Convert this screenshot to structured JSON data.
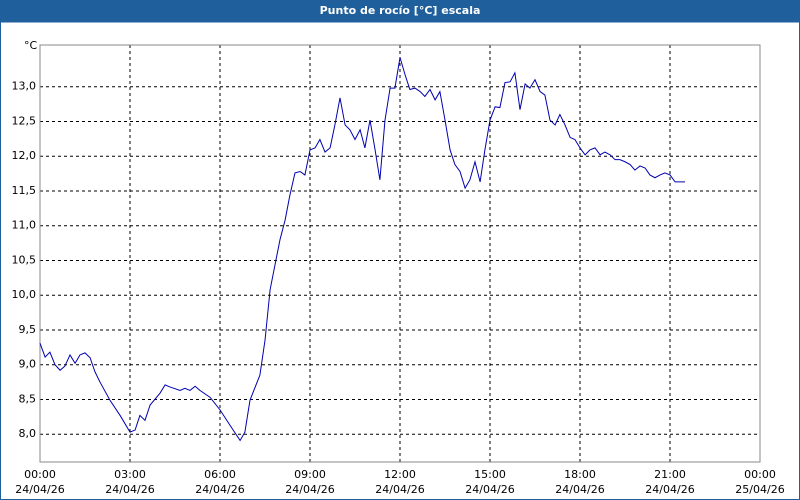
{
  "chart_data": {
    "type": "line",
    "title": "Punto de rocío [°C] escala",
    "y_label": "°C",
    "x": [
      0,
      0.17,
      0.33,
      0.5,
      0.67,
      0.83,
      1,
      1.17,
      1.33,
      1.5,
      1.67,
      1.83,
      2,
      2.33,
      2.67,
      3,
      3.17,
      3.33,
      3.5,
      3.67,
      4,
      4.17,
      4.33,
      4.67,
      4.83,
      5,
      5.17,
      5.33,
      5.67,
      6,
      6.33,
      6.67,
      6.83,
      7,
      7.33,
      7.5,
      7.67,
      8,
      8.17,
      8.33,
      8.5,
      8.67,
      8.83,
      9,
      9.17,
      9.33,
      9.5,
      9.67,
      9.83,
      10,
      10.17,
      10.33,
      10.5,
      10.67,
      10.83,
      11,
      11.17,
      11.33,
      11.5,
      11.67,
      11.83,
      12,
      12.17,
      12.33,
      12.5,
      12.67,
      12.83,
      13,
      13.17,
      13.33,
      13.5,
      13.67,
      13.83,
      14,
      14.17,
      14.33,
      14.5,
      14.67,
      14.83,
      15,
      15.17,
      15.33,
      15.5,
      15.67,
      15.83,
      16,
      16.17,
      16.33,
      16.5,
      16.67,
      16.83,
      17,
      17.17,
      17.33,
      17.5,
      17.67,
      17.83,
      18,
      18.17,
      18.33,
      18.5,
      18.67,
      18.83,
      19,
      19.17,
      19.33,
      19.5,
      19.67,
      19.83,
      20,
      20.17,
      20.33,
      20.5,
      20.67,
      20.83,
      21,
      21.17,
      21.33,
      21.5
    ],
    "series": [
      {
        "name": "Punto de rocío",
        "color": "#0000b0",
        "values": [
          9.31,
          9.11,
          9.18,
          9.0,
          8.92,
          8.98,
          9.14,
          9.02,
          9.14,
          9.17,
          9.1,
          8.9,
          8.75,
          8.49,
          8.27,
          8.03,
          8.06,
          8.27,
          8.2,
          8.42,
          8.59,
          8.71,
          8.68,
          8.63,
          8.66,
          8.63,
          8.69,
          8.63,
          8.53,
          8.35,
          8.13,
          7.91,
          8.03,
          8.49,
          8.85,
          9.35,
          10.08,
          10.8,
          11.08,
          11.44,
          11.76,
          11.78,
          11.73,
          12.09,
          12.12,
          12.24,
          12.06,
          12.12,
          12.45,
          12.84,
          12.45,
          12.38,
          12.24,
          12.38,
          12.12,
          12.52,
          12.09,
          11.66,
          12.52,
          12.98,
          12.98,
          13.42,
          13.17,
          12.96,
          12.98,
          12.93,
          12.86,
          12.96,
          12.81,
          12.93,
          12.52,
          12.09,
          11.88,
          11.78,
          11.54,
          11.66,
          11.92,
          11.63,
          12.09,
          12.52,
          12.71,
          12.7,
          13.06,
          13.07,
          13.2,
          12.67,
          13.04,
          12.98,
          13.1,
          12.93,
          12.88,
          12.52,
          12.45,
          12.6,
          12.45,
          12.27,
          12.24,
          12.12,
          12.02,
          12.09,
          12.12,
          12.02,
          12.06,
          12.02,
          11.95,
          11.95,
          11.92,
          11.88,
          11.8,
          11.86,
          11.83,
          11.73,
          11.69,
          11.73,
          11.76,
          11.73,
          11.63,
          11.63,
          11.63
        ]
      }
    ],
    "xlim": [
      0,
      24
    ],
    "xticks": [
      {
        "value": 0,
        "label": "00:00"
      },
      {
        "value": 3,
        "label": "03:00"
      },
      {
        "value": 6,
        "label": "06:00"
      },
      {
        "value": 9,
        "label": "09:00"
      },
      {
        "value": 12,
        "label": "12:00"
      },
      {
        "value": 15,
        "label": "15:00"
      },
      {
        "value": 18,
        "label": "18:00"
      },
      {
        "value": 21,
        "label": "21:00"
      },
      {
        "value": 24,
        "label": "00:00"
      }
    ],
    "xtick_dates": [
      "24/04/26",
      "24/04/26",
      "24/04/26",
      "24/04/26",
      "24/04/26",
      "24/04/26",
      "24/04/26",
      "24/04/26",
      "25/04/26"
    ],
    "ylim": [
      7.6,
      13.6
    ],
    "yticks": [
      {
        "value": 8,
        "label": "8,0"
      },
      {
        "value": 8.5,
        "label": "8,5"
      },
      {
        "value": 9,
        "label": "9,0"
      },
      {
        "value": 9.5,
        "label": "9,5"
      },
      {
        "value": 10,
        "label": "10,0"
      },
      {
        "value": 10.5,
        "label": "10,5"
      },
      {
        "value": 11,
        "label": "11,0"
      },
      {
        "value": 11.5,
        "label": "11,5"
      },
      {
        "value": 12,
        "label": "12,0"
      },
      {
        "value": 12.5,
        "label": "12,5"
      },
      {
        "value": 13,
        "label": "13,0"
      }
    ],
    "grid": true
  }
}
